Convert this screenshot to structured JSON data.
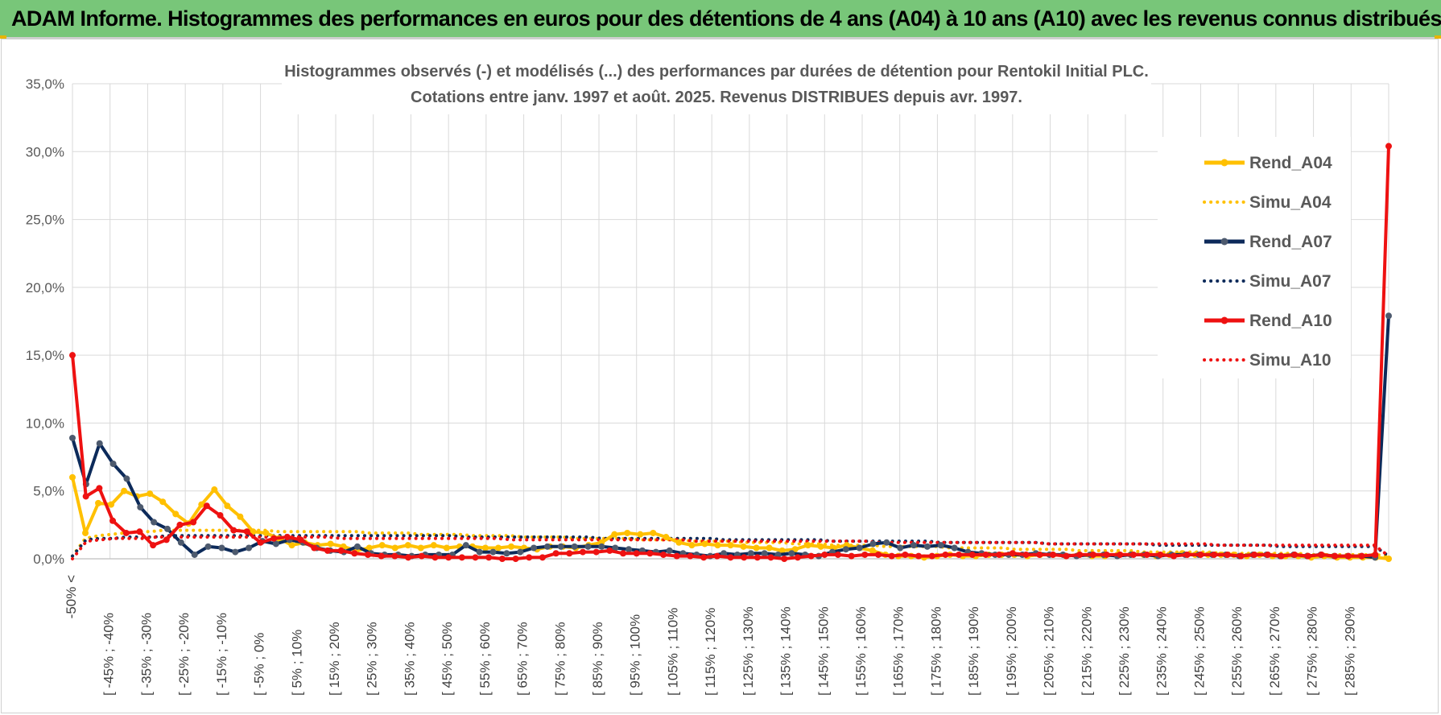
{
  "header": {
    "title": "ADAM Informe. Histogrammes des performances en euros pour des détentions de 4 ans (A04) à 10 ans (A10) avec les revenus connus distribués"
  },
  "chart_data": {
    "type": "line",
    "title_lines": [
      "Histogrammes observés (-) et modélisés (...) des performances par durées de détention pour Rentokil Initial PLC.",
      "Cotations entre janv. 1997 et août. 2025. Revenus DISTRIBUES depuis avr. 1997."
    ],
    "ylim": [
      0,
      35
    ],
    "yticks": [
      0,
      5,
      10,
      15,
      20,
      25,
      30,
      35
    ],
    "ytick_labels": [
      "0,0%",
      "5,0%",
      "10,0%",
      "15,0%",
      "20,0%",
      "25,0%",
      "30,0%",
      "35,0%"
    ],
    "grid": true,
    "legend_position": "right",
    "category_labels": [
      "-50% <",
      "[ -45% ; -40%",
      "[ -35% ; -30%",
      "[ -25% ; -20%",
      "[ -15% ; -10%",
      "[ -5% ; 0%",
      "[ 5% ; 10%",
      "[ 15% ; 20%",
      "[ 25% ; 30%",
      "[ 35% ; 40%",
      "[ 45% ; 50%",
      "[ 55% ; 60%",
      "[ 65% ; 70%",
      "[ 75% ; 80%",
      "[ 85% ; 90%",
      "[ 95% ; 100%",
      "[ 105% ; 110%",
      "[ 115% ; 120%",
      "[ 125% ; 130%",
      "[ 135% ; 140%",
      "[ 145% ; 150%",
      "[ 155% ; 160%",
      "[ 165% ; 170%",
      "[ 175% ; 180%",
      "[ 185% ; 190%",
      "[ 195% ; 200%",
      "[ 205% ; 210%",
      "[ 215% ; 220%",
      "[ 225% ; 230%",
      "[ 235% ; 240%",
      "[ 245% ; 250%",
      "[ 255% ; 260%",
      "[ 265% ; 270%",
      "[ 275% ; 280%",
      "[ 285% ; 290%"
    ],
    "series": [
      {
        "name": "Rend_A04",
        "color": "#ffc000",
        "style": "solid",
        "markers": true,
        "values": [
          6.0,
          1.9,
          4.1,
          4.0,
          5.0,
          4.6,
          4.8,
          4.2,
          3.3,
          2.6,
          4.0,
          5.1,
          3.9,
          3.1,
          2.0,
          1.9,
          1.5,
          1.0,
          1.2,
          1.0,
          1.1,
          0.9,
          0.6,
          0.8,
          1.0,
          0.8,
          1.0,
          0.8,
          1.0,
          0.8,
          0.9,
          0.9,
          0.8,
          0.8,
          0.9,
          0.8,
          0.7,
          0.9,
          0.9,
          0.8,
          1.0,
          1.2,
          1.8,
          1.9,
          1.8,
          1.9,
          1.6,
          1.2,
          1.0,
          1.1,
          1.0,
          1.0,
          0.9,
          0.8,
          0.8,
          0.6,
          0.7,
          1.0,
          0.9,
          0.8,
          1.0,
          0.8,
          0.6,
          0.3,
          0.2,
          0.2,
          0.1,
          0.2,
          0.3,
          0.2,
          0.2,
          0.3,
          0.3,
          0.3,
          0.2,
          0.3,
          0.3,
          0.2,
          0.3,
          0.2,
          0.2,
          0.3,
          0.3,
          0.3,
          0.2,
          0.3,
          0.4,
          0.3,
          0.3,
          0.3,
          0.3,
          0.2,
          0.3,
          0.2,
          0.2,
          0.2,
          0.1,
          0.2,
          0.1,
          0.1,
          0.1,
          0.1,
          0.0
        ]
      },
      {
        "name": "Simu_A04",
        "color": "#ffc000",
        "style": "dotted",
        "markers": false,
        "values": [
          0.2,
          1.5,
          1.7,
          1.8,
          1.9,
          2.0,
          2.0,
          2.1,
          2.1,
          2.1,
          2.1,
          2.1,
          2.1,
          2.1,
          2.1,
          2.1,
          2.0,
          2.0,
          2.0,
          2.0,
          2.0,
          2.0,
          2.0,
          1.9,
          1.9,
          1.9,
          1.9,
          1.8,
          1.8,
          1.8,
          1.8,
          1.7,
          1.7,
          1.7,
          1.7,
          1.6,
          1.6,
          1.6,
          1.6,
          1.5,
          1.5,
          1.5,
          1.5,
          1.5,
          1.4,
          1.4,
          1.4,
          1.4,
          1.3,
          1.3,
          1.3,
          1.3,
          1.2,
          1.2,
          1.2,
          1.2,
          1.1,
          1.1,
          1.1,
          1.0,
          1.0,
          1.0,
          1.0,
          0.9,
          0.9,
          0.9,
          0.9,
          0.9,
          0.8,
          0.8,
          0.8,
          0.8,
          0.8,
          0.7,
          0.7,
          0.7,
          0.7,
          0.7,
          0.6,
          0.6,
          0.6,
          0.6,
          0.6,
          0.5,
          0.5,
          0.5,
          0.5,
          0.5,
          0.5,
          0.4,
          0.4,
          0.4,
          0.4,
          0.4,
          0.4,
          0.4,
          0.3,
          0.3,
          0.3,
          0.3,
          0.3,
          0.3,
          0.2
        ]
      },
      {
        "name": "Rend_A07",
        "color": "#0c2a5a",
        "style": "solid",
        "markers": true,
        "values": [
          8.9,
          5.5,
          8.5,
          7.0,
          5.9,
          3.8,
          2.7,
          2.2,
          1.2,
          0.3,
          0.9,
          0.8,
          0.5,
          0.8,
          1.3,
          1.1,
          1.4,
          1.2,
          0.8,
          0.6,
          0.5,
          0.9,
          0.4,
          0.3,
          0.3,
          0.2,
          0.3,
          0.3,
          0.3,
          1.0,
          0.5,
          0.5,
          0.4,
          0.5,
          0.8,
          0.9,
          0.9,
          0.9,
          0.9,
          0.9,
          0.8,
          0.7,
          0.6,
          0.5,
          0.6,
          0.4,
          0.3,
          0.2,
          0.4,
          0.3,
          0.4,
          0.4,
          0.3,
          0.4,
          0.3,
          0.2,
          0.5,
          0.7,
          0.8,
          1.1,
          1.2,
          0.8,
          1.0,
          0.9,
          1.0,
          0.8,
          0.5,
          0.4,
          0.3,
          0.3,
          0.3,
          0.4,
          0.3,
          0.3,
          0.2,
          0.3,
          0.3,
          0.2,
          0.3,
          0.3,
          0.2,
          0.3,
          0.3,
          0.3,
          0.3,
          0.3,
          0.2,
          0.3,
          0.3,
          0.2,
          0.3,
          0.2,
          0.3,
          0.2,
          0.2,
          0.2,
          0.1,
          17.9
        ]
      },
      {
        "name": "Simu_A07",
        "color": "#0c2a5a",
        "style": "dotted",
        "markers": false,
        "values": [
          0.2,
          1.4,
          1.5,
          1.5,
          1.6,
          1.6,
          1.6,
          1.7,
          1.7,
          1.7,
          1.7,
          1.7,
          1.7,
          1.7,
          1.7,
          1.7,
          1.7,
          1.7,
          1.7,
          1.7,
          1.7,
          1.7,
          1.7,
          1.7,
          1.7,
          1.7,
          1.7,
          1.7,
          1.7,
          1.6,
          1.6,
          1.6,
          1.6,
          1.6,
          1.6,
          1.6,
          1.6,
          1.6,
          1.6,
          1.5,
          1.5,
          1.5,
          1.5,
          1.5,
          1.5,
          1.5,
          1.5,
          1.5,
          1.4,
          1.4,
          1.4,
          1.4,
          1.4,
          1.4,
          1.4,
          1.4,
          1.3,
          1.3,
          1.3,
          1.3,
          1.3,
          1.3,
          1.3,
          1.3,
          1.2,
          1.2,
          1.2,
          1.2,
          1.2,
          1.2,
          1.2,
          1.2,
          1.1,
          1.1,
          1.1,
          1.1,
          1.1,
          1.1,
          1.1,
          1.1,
          1.0,
          1.0,
          1.0,
          1.0,
          1.0,
          1.0,
          1.0,
          1.0,
          1.0,
          0.9,
          0.9,
          0.9,
          0.9,
          0.9,
          0.9,
          0.9,
          0.9,
          0.2
        ]
      },
      {
        "name": "Rend_A10",
        "color": "#ee1111",
        "style": "solid",
        "markers": true,
        "values": [
          15.0,
          4.6,
          5.2,
          2.8,
          1.9,
          2.0,
          1.0,
          1.4,
          2.5,
          2.7,
          3.9,
          3.2,
          2.1,
          2.0,
          1.2,
          1.5,
          1.6,
          1.4,
          0.8,
          0.6,
          0.6,
          0.4,
          0.3,
          0.2,
          0.2,
          0.1,
          0.2,
          0.1,
          0.1,
          0.1,
          0.1,
          0.1,
          0.0,
          0.0,
          0.1,
          0.1,
          0.4,
          0.4,
          0.5,
          0.5,
          0.6,
          0.4,
          0.4,
          0.4,
          0.3,
          0.2,
          0.2,
          0.1,
          0.2,
          0.1,
          0.1,
          0.1,
          0.1,
          0.0,
          0.1,
          0.2,
          0.3,
          0.3,
          0.2,
          0.3,
          0.3,
          0.2,
          0.3,
          0.2,
          0.2,
          0.3,
          0.3,
          0.3,
          0.3,
          0.3,
          0.4,
          0.3,
          0.3,
          0.3,
          0.2,
          0.3,
          0.3,
          0.3,
          0.3,
          0.3,
          0.3,
          0.3,
          0.2,
          0.3,
          0.3,
          0.3,
          0.3,
          0.2,
          0.3,
          0.3,
          0.2,
          0.3,
          0.2,
          0.3,
          0.2,
          0.2,
          0.2,
          0.3,
          30.4
        ]
      },
      {
        "name": "Simu_A10",
        "color": "#ee1111",
        "style": "dotted",
        "markers": false,
        "values": [
          0.0,
          1.3,
          1.4,
          1.5,
          1.5,
          1.5,
          1.6,
          1.6,
          1.6,
          1.6,
          1.6,
          1.6,
          1.6,
          1.6,
          1.6,
          1.6,
          1.6,
          1.6,
          1.6,
          1.5,
          1.5,
          1.5,
          1.5,
          1.5,
          1.5,
          1.5,
          1.5,
          1.5,
          1.5,
          1.5,
          1.5,
          1.4,
          1.4,
          1.4,
          1.4,
          1.4,
          1.4,
          1.4,
          1.4,
          1.4,
          1.4,
          1.4,
          1.4,
          1.4,
          1.3,
          1.3,
          1.3,
          1.3,
          1.3,
          1.3,
          1.3,
          1.3,
          1.3,
          1.3,
          1.3,
          1.3,
          1.3,
          1.2,
          1.2,
          1.2,
          1.2,
          1.2,
          1.2,
          1.2,
          1.2,
          1.2,
          1.2,
          1.2,
          1.2,
          1.1,
          1.1,
          1.1,
          1.1,
          1.1,
          1.1,
          1.1,
          1.1,
          1.1,
          1.1,
          1.1,
          1.1,
          1.0,
          1.0,
          1.0,
          1.0,
          1.0,
          1.0,
          1.0,
          1.0,
          1.0,
          1.0,
          1.0,
          1.0,
          0.2
        ]
      }
    ]
  }
}
